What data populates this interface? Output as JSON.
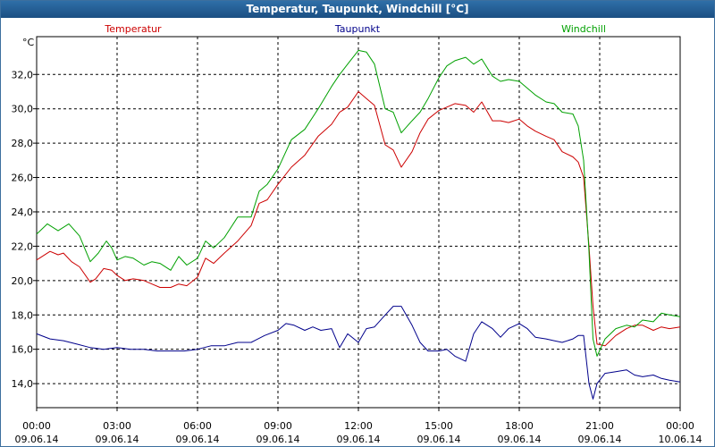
{
  "window": {
    "title": "Temperatur, Taupunkt, Windchill [°C]"
  },
  "chart_data": {
    "type": "line",
    "title": "Temperatur, Taupunkt, Windchill [°C]",
    "ylabel": "°C",
    "ylim": [
      12.6,
      34.2
    ],
    "xlim": [
      0,
      24
    ],
    "grid": true,
    "yticks": [
      14,
      16,
      18,
      20,
      22,
      24,
      26,
      28,
      30,
      32
    ],
    "ytick_labels": [
      "14,0",
      "16,0",
      "18,0",
      "20,0",
      "22,0",
      "24,0",
      "26,0",
      "28,0",
      "30,0",
      "32,0"
    ],
    "xticks": [
      0,
      3,
      6,
      9,
      12,
      15,
      18,
      21,
      24
    ],
    "xtick_times": [
      "00:00",
      "03:00",
      "06:00",
      "09:00",
      "12:00",
      "15:00",
      "18:00",
      "21:00",
      "00:00"
    ],
    "xtick_dates": [
      "09.06.14",
      "09.06.14",
      "09.06.14",
      "09.06.14",
      "09.06.14",
      "09.06.14",
      "09.06.14",
      "09.06.14",
      "10.06.14"
    ],
    "series": [
      {
        "name": "Temperatur",
        "color": "#cc0000",
        "x": [
          0,
          0.5,
          0.8,
          1.0,
          1.3,
          1.6,
          2.0,
          2.2,
          2.5,
          2.8,
          3.0,
          3.3,
          3.6,
          4.0,
          4.3,
          4.6,
          5.0,
          5.3,
          5.6,
          6.0,
          6.3,
          6.6,
          7.0,
          7.5,
          8.0,
          8.3,
          8.6,
          9.0,
          9.5,
          10.0,
          10.5,
          11.0,
          11.3,
          11.6,
          12.0,
          12.3,
          12.6,
          13.0,
          13.3,
          13.6,
          14.0,
          14.3,
          14.6,
          15.0,
          15.3,
          15.6,
          16.0,
          16.3,
          16.6,
          17.0,
          17.3,
          17.6,
          18.0,
          18.3,
          18.6,
          19.0,
          19.3,
          19.6,
          20.0,
          20.2,
          20.4,
          20.6,
          20.75,
          20.9,
          21.2,
          21.6,
          22.0,
          22.3,
          22.6,
          23.0,
          23.3,
          23.6,
          24.0
        ],
        "y": [
          21.2,
          21.7,
          21.5,
          21.6,
          21.1,
          20.8,
          19.9,
          20.1,
          20.7,
          20.6,
          20.3,
          20.0,
          20.1,
          20.0,
          19.8,
          19.6,
          19.6,
          19.8,
          19.7,
          20.2,
          21.3,
          21.0,
          21.6,
          22.3,
          23.2,
          24.5,
          24.7,
          25.6,
          26.6,
          27.3,
          28.4,
          29.1,
          29.8,
          30.1,
          31.0,
          30.6,
          30.2,
          27.9,
          27.6,
          26.6,
          27.5,
          28.6,
          29.4,
          29.9,
          30.1,
          30.3,
          30.2,
          29.8,
          30.4,
          29.3,
          29.3,
          29.2,
          29.4,
          29.0,
          28.7,
          28.4,
          28.2,
          27.5,
          27.2,
          26.9,
          26.0,
          22.0,
          18.5,
          16.3,
          16.2,
          16.8,
          17.2,
          17.4,
          17.4,
          17.1,
          17.3,
          17.2,
          17.3
        ]
      },
      {
        "name": "Taupunkt",
        "color": "#00008b",
        "x": [
          0,
          0.5,
          1.0,
          1.5,
          2.0,
          2.5,
          3.0,
          3.5,
          4.0,
          4.5,
          5.0,
          5.5,
          6.0,
          6.5,
          7.0,
          7.5,
          8.0,
          8.5,
          9.0,
          9.3,
          9.6,
          10.0,
          10.3,
          10.6,
          11.0,
          11.3,
          11.6,
          12.0,
          12.3,
          12.6,
          13.0,
          13.3,
          13.6,
          14.0,
          14.3,
          14.6,
          15.0,
          15.3,
          15.6,
          16.0,
          16.3,
          16.6,
          17.0,
          17.3,
          17.6,
          18.0,
          18.3,
          18.6,
          19.0,
          19.3,
          19.6,
          20.0,
          20.2,
          20.4,
          20.6,
          20.75,
          20.9,
          21.2,
          21.6,
          22.0,
          22.3,
          22.6,
          23.0,
          23.3,
          23.6,
          24.0
        ],
        "y": [
          16.9,
          16.6,
          16.5,
          16.3,
          16.1,
          16.0,
          16.1,
          16.0,
          16.0,
          15.9,
          15.9,
          15.9,
          16.0,
          16.2,
          16.2,
          16.4,
          16.4,
          16.8,
          17.1,
          17.5,
          17.4,
          17.1,
          17.3,
          17.1,
          17.2,
          16.1,
          16.9,
          16.4,
          17.2,
          17.3,
          18.0,
          18.5,
          18.5,
          17.4,
          16.4,
          15.9,
          15.9,
          16.0,
          15.6,
          15.3,
          16.9,
          17.6,
          17.2,
          16.7,
          17.2,
          17.5,
          17.2,
          16.7,
          16.6,
          16.5,
          16.4,
          16.6,
          16.8,
          16.8,
          14.0,
          13.1,
          14.0,
          14.6,
          14.7,
          14.8,
          14.5,
          14.4,
          14.5,
          14.3,
          14.2,
          14.1
        ]
      },
      {
        "name": "Windchill",
        "color": "#00a000",
        "x": [
          0,
          0.4,
          0.8,
          1.2,
          1.6,
          2.0,
          2.3,
          2.6,
          2.8,
          3.0,
          3.3,
          3.6,
          4.0,
          4.3,
          4.6,
          5.0,
          5.3,
          5.6,
          6.0,
          6.3,
          6.6,
          7.0,
          7.5,
          8.0,
          8.3,
          8.6,
          9.0,
          9.5,
          10.0,
          10.5,
          11.0,
          11.3,
          11.6,
          12.0,
          12.3,
          12.6,
          13.0,
          13.3,
          13.6,
          14.0,
          14.3,
          14.6,
          15.0,
          15.3,
          15.6,
          16.0,
          16.3,
          16.6,
          17.0,
          17.3,
          17.6,
          18.0,
          18.3,
          18.6,
          19.0,
          19.3,
          19.6,
          20.0,
          20.2,
          20.4,
          20.6,
          20.75,
          20.9,
          21.2,
          21.6,
          22.0,
          22.3,
          22.6,
          23.0,
          23.3,
          23.6,
          24.0
        ],
        "y": [
          22.7,
          23.3,
          22.9,
          23.3,
          22.6,
          21.1,
          21.6,
          22.3,
          21.9,
          21.2,
          21.4,
          21.3,
          20.9,
          21.1,
          21.0,
          20.6,
          21.4,
          20.9,
          21.3,
          22.3,
          21.9,
          22.5,
          23.7,
          23.7,
          25.2,
          25.6,
          26.5,
          28.2,
          28.8,
          30.0,
          31.3,
          32.0,
          32.6,
          33.4,
          33.3,
          32.6,
          30.0,
          29.8,
          28.6,
          29.3,
          29.8,
          30.6,
          31.8,
          32.5,
          32.8,
          33.0,
          32.6,
          32.9,
          31.9,
          31.6,
          31.7,
          31.6,
          31.2,
          30.8,
          30.4,
          30.3,
          29.8,
          29.7,
          29.0,
          27.0,
          21.7,
          16.6,
          15.6,
          16.6,
          17.2,
          17.4,
          17.3,
          17.7,
          17.6,
          18.1,
          18.0,
          17.9
        ]
      }
    ]
  }
}
